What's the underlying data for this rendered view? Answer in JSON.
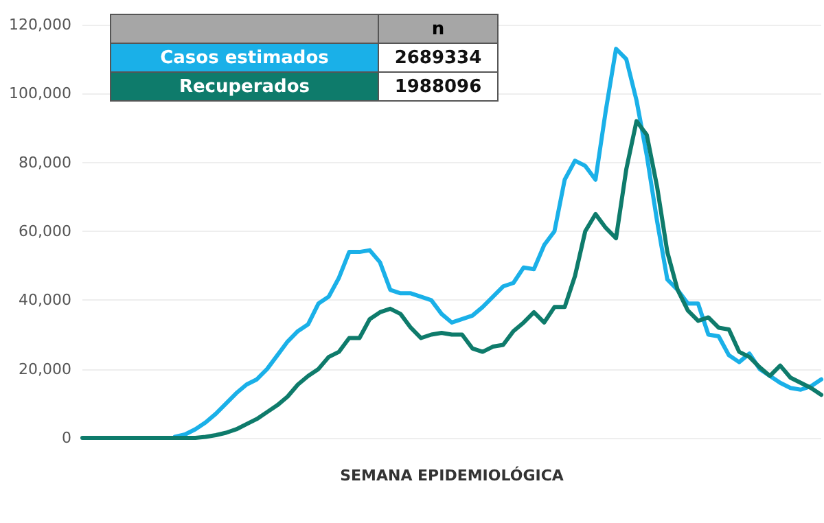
{
  "chart_data": {
    "type": "line",
    "xlabel": "SEMANA EPIDEMIOLÓGICA",
    "categories": [
      null,
      null,
      null,
      null,
      null,
      null,
      null,
      null,
      null,
      null,
      null,
      null,
      null,
      null,
      null,
      null,
      null,
      null,
      null,
      null,
      null,
      null,
      null,
      null,
      null,
      null,
      null,
      null,
      null,
      null,
      null,
      null,
      null,
      null,
      null,
      null,
      null,
      null,
      null,
      null,
      null,
      null,
      null,
      null,
      null,
      null,
      null,
      null,
      null,
      null,
      null,
      null,
      null,
      null,
      null,
      null,
      null,
      null,
      null,
      null,
      null,
      null,
      null,
      null,
      null,
      null,
      null,
      null,
      null,
      null,
      null,
      null,
      null
    ],
    "series": [
      {
        "name": "Casos estimados",
        "color": "#1ab0e8",
        "values": [
          null,
          null,
          null,
          null,
          null,
          null,
          null,
          null,
          null,
          300,
          1000,
          2500,
          4500,
          7000,
          10000,
          13000,
          15500,
          17000,
          20000,
          24000,
          28000,
          31000,
          33000,
          39000,
          41000,
          46500,
          54000,
          54000,
          54500,
          51000,
          43000,
          42000,
          42000,
          41000,
          40000,
          36000,
          33500,
          34500,
          35500,
          38000,
          41000,
          44000,
          45000,
          49500,
          49000,
          56000,
          60000,
          75000,
          80500,
          79000,
          75000,
          95000,
          113000,
          110000,
          98000,
          82000,
          63000,
          46000,
          43000,
          39000,
          39000,
          30000,
          29500,
          24000,
          22000,
          24500,
          20000,
          18000,
          16000,
          14500,
          14000,
          15000,
          17000
        ]
      },
      {
        "name": "Recuperados",
        "color": "#0e7b6b",
        "values": [
          0,
          0,
          0,
          0,
          0,
          0,
          0,
          0,
          0,
          0,
          0,
          0,
          300,
          800,
          1500,
          2500,
          4000,
          5500,
          7500,
          9500,
          12000,
          15500,
          18000,
          20000,
          23500,
          25000,
          29000,
          29000,
          34500,
          36500,
          37500,
          36000,
          32000,
          29000,
          30000,
          30500,
          30000,
          30000,
          26000,
          25000,
          26500,
          27000,
          31000,
          33500,
          36500,
          33500,
          38000,
          38000,
          47000,
          60000,
          65000,
          61000,
          58000,
          78000,
          92000,
          88000,
          73000,
          54000,
          43000,
          37000,
          34000,
          35000,
          32000,
          31500,
          25000,
          23500,
          20500,
          18000,
          21000,
          17500,
          16000,
          14500,
          12500
        ]
      }
    ],
    "annotations": [
      "n",
      "2689334",
      "1988096"
    ],
    "ylim": [
      0,
      120000
    ],
    "yticks": [
      0,
      {
        "value": 20000,
        "label": "20,000"
      },
      {
        "value": 40000,
        "label": "40,000"
      },
      {
        "value": 60000,
        "label": "60,000"
      },
      {
        "value": 80000,
        "label": "80,000"
      },
      {
        "value": 100000,
        "label": "100,000"
      },
      {
        "value": 120000,
        "label": "120,000"
      }
    ],
    "grid": "y",
    "legend": "top left",
    "tick_labels": "y",
    "line_style": "solid"
  }
}
